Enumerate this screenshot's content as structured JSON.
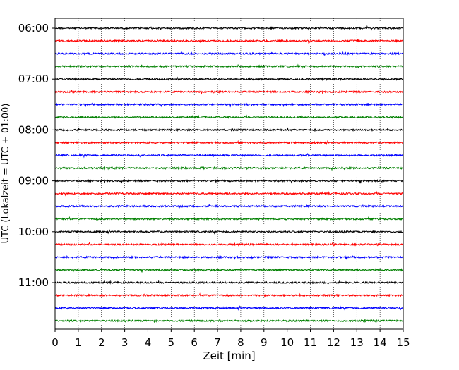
{
  "chart_data": {
    "type": "line",
    "title": "",
    "xlabel": "Zeit  [min]",
    "ylabel": "UTC (Lokalzeit = UTC + 01:00)",
    "xlim": [
      0,
      15
    ],
    "x_ticks": [
      0,
      1,
      2,
      3,
      4,
      5,
      6,
      7,
      8,
      9,
      10,
      11,
      12,
      13,
      14,
      15
    ],
    "y_tick_labels": [
      "06:00",
      "07:00",
      "08:00",
      "09:00",
      "10:00",
      "11:00"
    ],
    "y_tick_rows": [
      0,
      4,
      8,
      12,
      16,
      20
    ],
    "trace_interval_minutes": 15,
    "trace_start": "06:00",
    "trace_count": 24,
    "trace_colors": [
      "#000000",
      "#ff0000",
      "#0000ff",
      "#008000"
    ],
    "vertical_grid": "dotted, every 1 min",
    "legend": "none"
  }
}
